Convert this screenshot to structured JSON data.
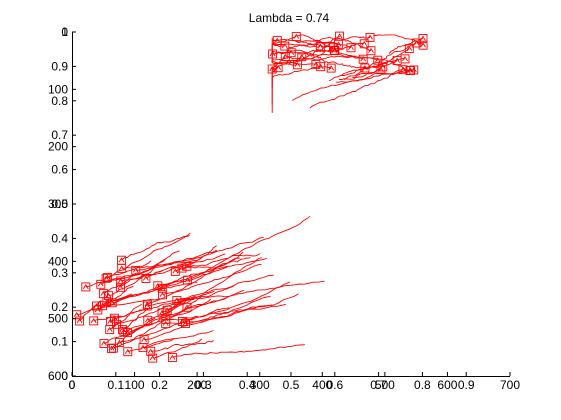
{
  "chart_data": {
    "type": "line",
    "title": "Lambda  = 0.74",
    "xlabel": "",
    "ylabel": "",
    "grid": false,
    "legend": "none",
    "color": "#ff0000",
    "axes_frac": {
      "xlim": [
        0,
        1
      ],
      "ylim": [
        0,
        1
      ],
      "x_ticks": [
        "0",
        "0.1",
        "0.2",
        "0.3",
        "0.4",
        "0.5",
        "0.6",
        "0.7",
        "0.8",
        "0.9"
      ],
      "y_ticks": [
        "0",
        "0.1",
        "0.2",
        "0.3",
        "0.4",
        "0.5",
        "0.6",
        "0.7",
        "0.8",
        "0.9",
        "1"
      ]
    },
    "axes_px": {
      "xlim": [
        0,
        700
      ],
      "ylim": [
        0,
        600
      ],
      "reversed_y": true,
      "x_ticks": [
        "0",
        "100",
        "200",
        "300",
        "400",
        "500",
        "600",
        "700"
      ],
      "y_ticks": [
        "0",
        "100",
        "200",
        "300",
        "400",
        "500",
        "600"
      ]
    },
    "clusters": [
      {
        "region": "upper-right",
        "x_range": [
          320,
          600
        ],
        "y_range": [
          5,
          190
        ],
        "trajectory_count": 38
      },
      {
        "region": "lower-left",
        "x_range": [
          5,
          410
        ],
        "y_range": [
          290,
          585
        ],
        "trajectory_count": 55
      }
    ]
  }
}
